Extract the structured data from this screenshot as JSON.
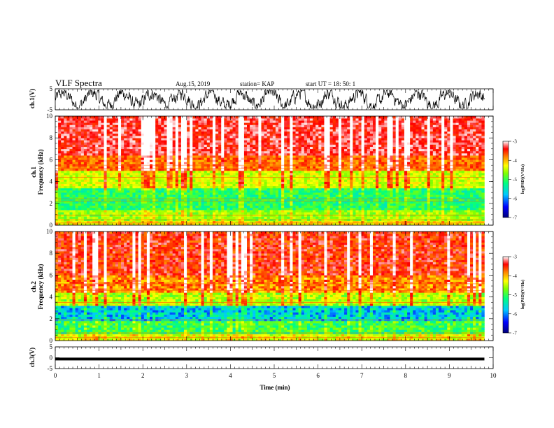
{
  "header": {
    "title": "VLF Spectra",
    "date": "Aug.15, 2019",
    "station": "station= KAP",
    "start": "start  UT  =  18: 50: 1"
  },
  "chart_data": [
    {
      "type": "line",
      "ylabel": "ch.1(V)",
      "ylim": [
        -5,
        5
      ],
      "yticks": [
        "5",
        "-5"
      ],
      "xlim": [
        0,
        10
      ],
      "description_of_signal": "noisy waveform oscillating between about -4 and 4 V over 0 to 9.8 min",
      "series": [
        {
          "values_range": [
            -4,
            4
          ],
          "x_end": 9.8
        }
      ]
    },
    {
      "type": "heatmap",
      "ylabel": "ch.1\nFrequency (kHz)",
      "ylabel_lines": [
        "ch.1",
        "Frequency (kHz)"
      ],
      "ylim": [
        0,
        10
      ],
      "yticks": [
        "0",
        "2",
        "4",
        "6",
        "8",
        "10"
      ],
      "xlim": [
        0,
        10
      ],
      "x_end": 9.8,
      "bands": [
        {
          "fmin": 0.0,
          "fmax": 0.5,
          "level": -4.5
        },
        {
          "fmin": 0.5,
          "fmax": 1.5,
          "level": -4.9
        },
        {
          "fmin": 1.5,
          "fmax": 3.5,
          "level": -5.4
        },
        {
          "fmin": 3.5,
          "fmax": 5.0,
          "level": -4.7
        },
        {
          "fmin": 5.0,
          "fmax": 6.5,
          "level": -3.9
        },
        {
          "fmin": 6.5,
          "fmax": 10.0,
          "level": -3.4
        }
      ],
      "lines_khz": [
        0.2,
        0.5,
        0.9,
        2.2,
        2.4,
        4.4,
        5.2,
        5.5
      ],
      "colorbar": {
        "range": [
          -7,
          -3
        ],
        "ticks": [
          "-3",
          "-4",
          "-5",
          "-6",
          "-7"
        ],
        "label": "log(PSD)(V²/Hz)"
      }
    },
    {
      "type": "heatmap",
      "ylabel": "ch.2\nFrequency (kHz)",
      "ylabel_lines": [
        "ch.2",
        "Frequency (kHz)"
      ],
      "ylim": [
        0,
        10
      ],
      "yticks": [
        "0",
        "2",
        "4",
        "6",
        "8",
        "10"
      ],
      "xlim": [
        0,
        10
      ],
      "x_end": 9.8,
      "bands": [
        {
          "fmin": 0.0,
          "fmax": 0.6,
          "level": -4.6
        },
        {
          "fmin": 0.6,
          "fmax": 1.8,
          "level": -5.3
        },
        {
          "fmin": 1.8,
          "fmax": 3.2,
          "level": -5.9
        },
        {
          "fmin": 3.2,
          "fmax": 4.5,
          "level": -4.8
        },
        {
          "fmin": 4.5,
          "fmax": 6.0,
          "level": -4.0
        },
        {
          "fmin": 6.0,
          "fmax": 10.0,
          "level": -3.6
        }
      ],
      "lines_khz": [
        0.3,
        0.7,
        1.9,
        3.5,
        4.6,
        5.2
      ],
      "colorbar": {
        "range": [
          -7,
          -3
        ],
        "ticks": [
          "-3",
          "-4",
          "-5",
          "-6",
          "-7"
        ],
        "label": "log(PSD)(V²/Hz)"
      }
    },
    {
      "type": "line",
      "ylabel": "ch.3(V)",
      "ylim": [
        -5,
        5
      ],
      "yticks": [
        "5",
        "0",
        "-5"
      ],
      "xlim": [
        0,
        10
      ],
      "xticks": [
        "0",
        "1",
        "2",
        "3",
        "4",
        "5",
        "6",
        "7",
        "8",
        "9",
        "10"
      ],
      "xlabel": "Time (min)",
      "series": [
        {
          "values": [
            -0.6,
            -0.6
          ],
          "x": [
            0,
            9.8
          ]
        }
      ]
    }
  ],
  "colors": {
    "colormap": [
      "#00007a",
      "#0000ff",
      "#00c8ff",
      "#00ff80",
      "#80ff00",
      "#ffff00",
      "#ff8000",
      "#ff0000",
      "#ffffff"
    ]
  }
}
